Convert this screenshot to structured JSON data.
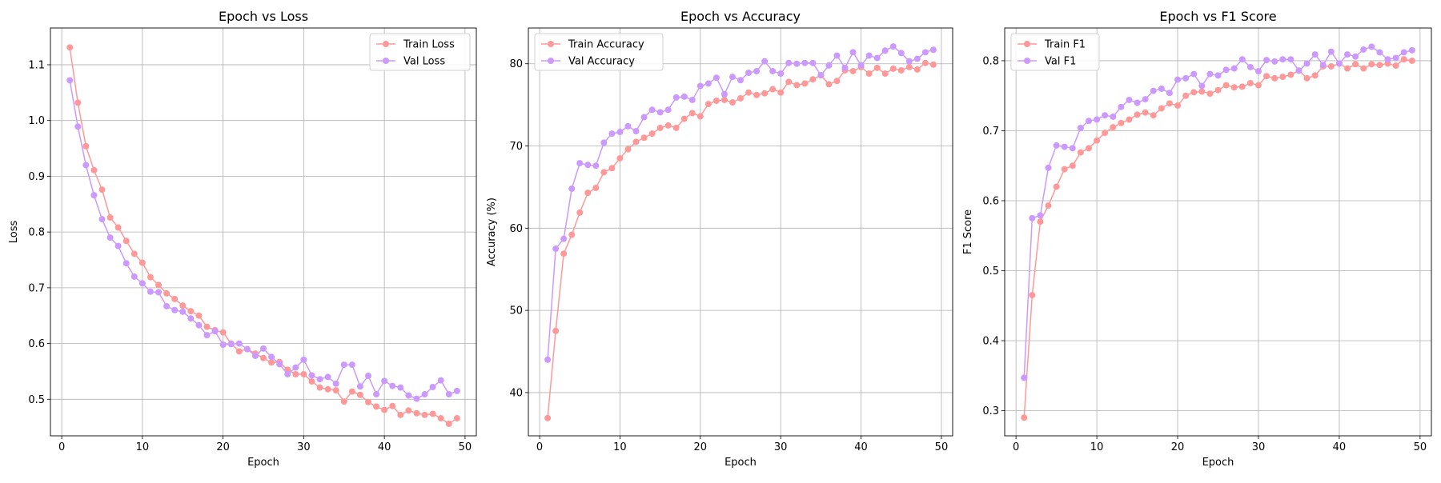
{
  "chart_data": [
    {
      "type": "line",
      "title": "Epoch vs Loss",
      "xlabel": "Epoch",
      "ylabel": "Loss",
      "xlim": [
        -1.4,
        51.4
      ],
      "ylim": [
        0.4345,
        1.1659
      ],
      "xticks": [
        0,
        10,
        20,
        30,
        40,
        50
      ],
      "yticks": [
        0.5,
        0.6,
        0.7,
        0.8,
        0.9,
        1.0,
        1.1
      ],
      "tick_format": "%.1f",
      "grid": true,
      "legend_position": "upper-right",
      "series": [
        {
          "name": "Train Loss",
          "color": "#ff9999",
          "x": [
            1,
            2,
            3,
            4,
            5,
            6,
            7,
            8,
            9,
            10,
            11,
            12,
            13,
            14,
            15,
            16,
            17,
            18,
            19,
            20,
            21,
            22,
            23,
            24,
            25,
            26,
            27,
            28,
            29,
            30,
            31,
            32,
            33,
            34,
            35,
            36,
            37,
            38,
            39,
            40,
            41,
            42,
            43,
            44,
            45,
            46,
            47,
            48,
            49
          ],
          "y": [
            1.131,
            1.032,
            0.954,
            0.911,
            0.876,
            0.826,
            0.808,
            0.784,
            0.761,
            0.745,
            0.719,
            0.705,
            0.69,
            0.68,
            0.668,
            0.658,
            0.65,
            0.63,
            0.624,
            0.62,
            0.6,
            0.586,
            0.59,
            0.582,
            0.574,
            0.566,
            0.567,
            0.553,
            0.545,
            0.545,
            0.532,
            0.521,
            0.518,
            0.516,
            0.496,
            0.514,
            0.508,
            0.495,
            0.487,
            0.481,
            0.488,
            0.472,
            0.48,
            0.475,
            0.472,
            0.474,
            0.466,
            0.456,
            0.466
          ]
        },
        {
          "name": "Val Loss",
          "color": "#cc99ff",
          "x": [
            1,
            2,
            3,
            4,
            5,
            6,
            7,
            8,
            9,
            10,
            11,
            12,
            13,
            14,
            15,
            16,
            17,
            18,
            19,
            20,
            21,
            22,
            23,
            24,
            25,
            26,
            27,
            28,
            29,
            30,
            31,
            32,
            33,
            34,
            35,
            36,
            37,
            38,
            39,
            40,
            41,
            42,
            43,
            44,
            45,
            46,
            47,
            48,
            49
          ],
          "y": [
            1.072,
            0.989,
            0.92,
            0.866,
            0.823,
            0.79,
            0.775,
            0.744,
            0.72,
            0.708,
            0.693,
            0.692,
            0.667,
            0.66,
            0.657,
            0.645,
            0.633,
            0.615,
            0.622,
            0.598,
            0.599,
            0.6,
            0.59,
            0.578,
            0.591,
            0.576,
            0.563,
            0.545,
            0.557,
            0.571,
            0.543,
            0.536,
            0.54,
            0.528,
            0.562,
            0.562,
            0.523,
            0.542,
            0.509,
            0.533,
            0.524,
            0.521,
            0.507,
            0.501,
            0.509,
            0.522,
            0.534,
            0.509,
            0.515
          ]
        }
      ]
    },
    {
      "type": "line",
      "title": "Epoch vs Accuracy",
      "xlabel": "Epoch",
      "ylabel": "Accuracy (%)",
      "xlim": [
        -1.4,
        51.4
      ],
      "ylim": [
        34.74,
        84.35
      ],
      "xticks": [
        0,
        10,
        20,
        30,
        40,
        50
      ],
      "yticks": [
        40,
        50,
        60,
        70,
        80
      ],
      "tick_format": "%d",
      "grid": true,
      "legend_position": "upper-left",
      "series": [
        {
          "name": "Train Accuracy",
          "color": "#ff9999",
          "x": [
            1,
            2,
            3,
            4,
            5,
            6,
            7,
            8,
            9,
            10,
            11,
            12,
            13,
            14,
            15,
            16,
            17,
            18,
            19,
            20,
            21,
            22,
            23,
            24,
            25,
            26,
            27,
            28,
            29,
            30,
            31,
            32,
            33,
            34,
            35,
            36,
            37,
            38,
            39,
            40,
            41,
            42,
            43,
            44,
            45,
            46,
            47,
            48,
            49
          ],
          "y": [
            36.9,
            47.5,
            56.9,
            59.2,
            61.9,
            64.3,
            64.9,
            66.8,
            67.3,
            68.5,
            69.6,
            70.5,
            71.0,
            71.5,
            72.2,
            72.5,
            72.2,
            73.3,
            74.0,
            73.6,
            75.1,
            75.5,
            75.6,
            75.3,
            75.8,
            76.5,
            76.2,
            76.4,
            76.9,
            76.5,
            77.8,
            77.4,
            77.6,
            78.1,
            78.6,
            77.5,
            77.9,
            79.2,
            79.1,
            79.6,
            78.8,
            79.5,
            78.8,
            79.4,
            79.2,
            79.6,
            79.3,
            80.1,
            79.9
          ]
        },
        {
          "name": "Val Accuracy",
          "color": "#cc99ff",
          "x": [
            1,
            2,
            3,
            4,
            5,
            6,
            7,
            8,
            9,
            10,
            11,
            12,
            13,
            14,
            15,
            16,
            17,
            18,
            19,
            20,
            21,
            22,
            23,
            24,
            25,
            26,
            27,
            28,
            29,
            30,
            31,
            32,
            33,
            34,
            35,
            36,
            37,
            38,
            39,
            40,
            41,
            42,
            43,
            44,
            45,
            46,
            47,
            48,
            49
          ],
          "y": [
            44.0,
            57.5,
            58.7,
            64.8,
            67.9,
            67.7,
            67.6,
            70.4,
            71.5,
            71.7,
            72.4,
            71.8,
            73.5,
            74.4,
            74.1,
            74.4,
            75.9,
            76.0,
            75.6,
            77.3,
            77.6,
            78.3,
            76.3,
            78.4,
            78.0,
            78.9,
            79.1,
            80.3,
            79.1,
            78.8,
            80.1,
            80.0,
            80.1,
            80.1,
            78.6,
            79.8,
            81.0,
            79.5,
            81.4,
            79.8,
            81.0,
            80.7,
            81.6,
            82.1,
            81.3,
            80.3,
            80.6,
            81.4,
            81.7
          ]
        }
      ]
    },
    {
      "type": "line",
      "title": "Epoch vs F1 Score",
      "xlabel": "Epoch",
      "ylabel": "F1 Score",
      "xlim": [
        -1.4,
        51.4
      ],
      "ylim": [
        0.264,
        0.8468
      ],
      "xticks": [
        0,
        10,
        20,
        30,
        40,
        50
      ],
      "yticks": [
        0.3,
        0.4,
        0.5,
        0.6,
        0.7,
        0.8
      ],
      "tick_format": "%.1f",
      "grid": true,
      "legend_position": "upper-left",
      "series": [
        {
          "name": "Train F1",
          "color": "#ff9999",
          "x": [
            1,
            2,
            3,
            4,
            5,
            6,
            7,
            8,
            9,
            10,
            11,
            12,
            13,
            14,
            15,
            16,
            17,
            18,
            19,
            20,
            21,
            22,
            23,
            24,
            25,
            26,
            27,
            28,
            29,
            30,
            31,
            32,
            33,
            34,
            35,
            36,
            37,
            38,
            39,
            40,
            41,
            42,
            43,
            44,
            45,
            46,
            47,
            48,
            49
          ],
          "y": [
            0.29,
            0.465,
            0.57,
            0.593,
            0.62,
            0.645,
            0.65,
            0.669,
            0.675,
            0.686,
            0.697,
            0.705,
            0.711,
            0.716,
            0.723,
            0.726,
            0.722,
            0.732,
            0.739,
            0.736,
            0.75,
            0.755,
            0.756,
            0.753,
            0.758,
            0.765,
            0.762,
            0.763,
            0.768,
            0.765,
            0.778,
            0.775,
            0.777,
            0.78,
            0.786,
            0.775,
            0.779,
            0.792,
            0.792,
            0.796,
            0.789,
            0.795,
            0.789,
            0.795,
            0.794,
            0.796,
            0.793,
            0.802,
            0.8
          ]
        },
        {
          "name": "Val F1",
          "color": "#cc99ff",
          "x": [
            1,
            2,
            3,
            4,
            5,
            6,
            7,
            8,
            9,
            10,
            11,
            12,
            13,
            14,
            15,
            16,
            17,
            18,
            19,
            20,
            21,
            22,
            23,
            24,
            25,
            26,
            27,
            28,
            29,
            30,
            31,
            32,
            33,
            34,
            35,
            36,
            37,
            38,
            39,
            40,
            41,
            42,
            43,
            44,
            45,
            46,
            47,
            48,
            49
          ],
          "y": [
            0.347,
            0.575,
            0.579,
            0.647,
            0.679,
            0.677,
            0.675,
            0.704,
            0.714,
            0.716,
            0.722,
            0.72,
            0.734,
            0.744,
            0.74,
            0.745,
            0.757,
            0.76,
            0.754,
            0.773,
            0.775,
            0.781,
            0.764,
            0.781,
            0.779,
            0.787,
            0.789,
            0.802,
            0.791,
            0.785,
            0.801,
            0.799,
            0.802,
            0.802,
            0.786,
            0.796,
            0.809,
            0.794,
            0.813,
            0.796,
            0.809,
            0.806,
            0.816,
            0.82,
            0.812,
            0.802,
            0.804,
            0.812,
            0.815
          ]
        }
      ]
    }
  ]
}
